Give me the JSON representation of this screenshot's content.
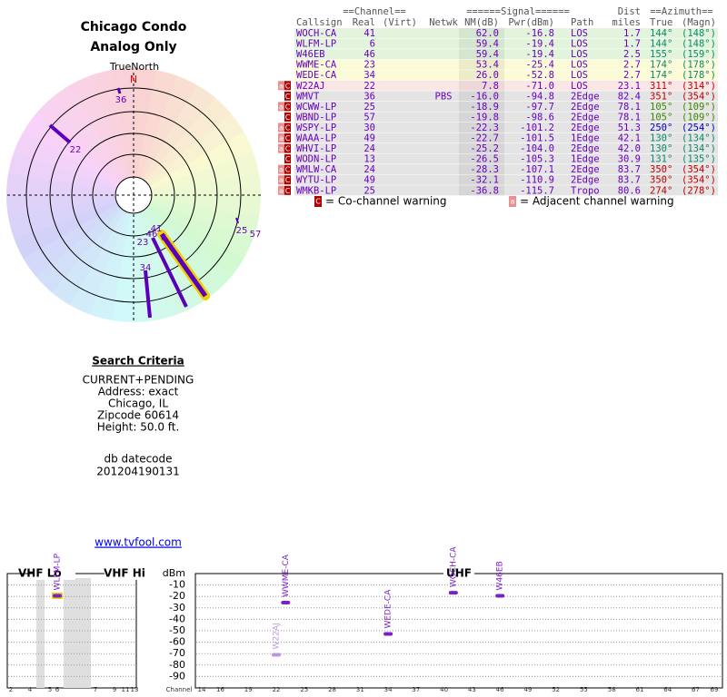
{
  "header": {
    "title": "Chicago Condo",
    "subtitle": "Analog Only"
  },
  "polar": {
    "north_label": "TrueNorth",
    "north_mark": "N",
    "labels": [
      "36",
      "22",
      "41",
      "46",
      "6",
      "23",
      "34",
      "25",
      "57"
    ]
  },
  "table": {
    "group_headers": [
      "==Channel==",
      "======Signal======",
      "Dist",
      "==Azimuth=="
    ],
    "columns": [
      "Callsign",
      "Real",
      "(Virt)",
      "Netwk",
      "NM(dB)",
      "Pwr(dBm)",
      "Path",
      "miles",
      "True",
      "(Magn)"
    ],
    "rows": [
      {
        "cells": [
          "WOCH-CA",
          "41",
          null,
          null,
          "62.0",
          "-16.8",
          "LOS",
          "1.7",
          "144°",
          "(148°)"
        ],
        "flags": [],
        "bg": "#e2f5dc",
        "az_color": "#0a8a6a"
      },
      {
        "cells": [
          "WLFM-LP",
          "6",
          null,
          null,
          "59.4",
          "-19.4",
          "LOS",
          "1.7",
          "144°",
          "(148°)"
        ],
        "flags": [],
        "bg": "#e2f5dc",
        "az_color": "#0a8a6a"
      },
      {
        "cells": [
          "W46EB",
          "46",
          null,
          null,
          "59.4",
          "-19.4",
          "LOS",
          "2.5",
          "155°",
          "(159°)"
        ],
        "flags": [],
        "bg": "#e2f5dc",
        "az_color": "#0a8a6a"
      },
      {
        "cells": [
          "WWME-CA",
          "23",
          null,
          null,
          "53.4",
          "-25.4",
          "LOS",
          "2.7",
          "174°",
          "(178°)"
        ],
        "flags": [],
        "bg": "#fbfbd8",
        "az_color": "#0a8a6a"
      },
      {
        "cells": [
          "WEDE-CA",
          "34",
          null,
          null,
          "26.0",
          "-52.8",
          "LOS",
          "2.7",
          "174°",
          "(178°)"
        ],
        "flags": [],
        "bg": "#fbfbd8",
        "az_color": "#0a8a6a"
      },
      {
        "cells": [
          "W22AJ",
          "22",
          null,
          null,
          "7.8",
          "-71.0",
          "LOS",
          "23.1",
          "311°",
          "(314°)"
        ],
        "flags": [
          "a",
          "C"
        ],
        "bg": "#fbe6e6",
        "az_color": "#c00000"
      },
      {
        "cells": [
          "WMVT",
          "36",
          null,
          "PBS",
          "-16.0",
          "-94.8",
          "2Edge",
          "82.4",
          "351°",
          "(354°)"
        ],
        "flags": [
          "C"
        ],
        "bg": "#e4e4e4",
        "az_color": "#c00000"
      },
      {
        "cells": [
          "WCWW-LP",
          "25",
          null,
          null,
          "-18.9",
          "-97.7",
          "2Edge",
          "78.1",
          "105°",
          "(109°)"
        ],
        "flags": [
          "a",
          "C"
        ],
        "bg": "#e4e4e4",
        "az_color": "#3a8a00"
      },
      {
        "cells": [
          "WBND-LP",
          "57",
          null,
          null,
          "-19.8",
          "-98.6",
          "2Edge",
          "78.1",
          "105°",
          "(109°)"
        ],
        "flags": [
          "C"
        ],
        "bg": "#e4e4e4",
        "az_color": "#3a8a00"
      },
      {
        "cells": [
          "WSPY-LP",
          "30",
          null,
          null,
          "-22.3",
          "-101.2",
          "2Edge",
          "51.3",
          "250°",
          "(254°)"
        ],
        "flags": [
          "a",
          "C"
        ],
        "bg": "#e4e4e4",
        "az_color": "#0000c0"
      },
      {
        "cells": [
          "WAAA-LP",
          "49",
          null,
          null,
          "-22.7",
          "-101.5",
          "1Edge",
          "42.1",
          "130°",
          "(134°)"
        ],
        "flags": [
          "a",
          "C"
        ],
        "bg": "#e4e4e4",
        "az_color": "#0a8a6a"
      },
      {
        "cells": [
          "WHVI-LP",
          "24",
          null,
          null,
          "-25.2",
          "-104.0",
          "2Edge",
          "42.0",
          "130°",
          "(134°)"
        ],
        "flags": [
          "a",
          "C"
        ],
        "bg": "#e4e4e4",
        "az_color": "#0a8a6a"
      },
      {
        "cells": [
          "WODN-LP",
          "13",
          null,
          null,
          "-26.5",
          "-105.3",
          "1Edge",
          "30.9",
          "131°",
          "(135°)"
        ],
        "flags": [
          "C"
        ],
        "bg": "#e4e4e4",
        "az_color": "#0a8a6a"
      },
      {
        "cells": [
          "WMLW-CA",
          "24",
          null,
          null,
          "-28.3",
          "-107.1",
          "2Edge",
          "83.7",
          "350°",
          "(354°)"
        ],
        "flags": [
          "a",
          "C"
        ],
        "bg": "#e4e4e4",
        "az_color": "#c00000"
      },
      {
        "cells": [
          "WYTU-LP",
          "49",
          null,
          null,
          "-32.1",
          "-110.9",
          "2Edge",
          "83.7",
          "350°",
          "(354°)"
        ],
        "flags": [
          "a",
          "C"
        ],
        "bg": "#e4e4e4",
        "az_color": "#c00000"
      },
      {
        "cells": [
          "WMKB-LP",
          "25",
          null,
          null,
          "-36.8",
          "-115.7",
          "Tropo",
          "80.6",
          "274°",
          "(278°)"
        ],
        "flags": [
          "a",
          "C"
        ],
        "bg": "#e4e4e4",
        "az_color": "#c00000"
      }
    ],
    "legend": [
      {
        "flag": "C",
        "text": "= Co-channel warning"
      },
      {
        "flag": "a",
        "text": "= Adjacent channel warning"
      }
    ]
  },
  "search": {
    "heading": "Search Criteria",
    "lines": [
      "CURRENT+PENDING",
      "Address: exact",
      "Chicago, IL",
      "Zipcode 60614",
      "Height: 50.0 ft."
    ]
  },
  "datecode": {
    "label": "db datecode",
    "value": "201204190131"
  },
  "link": "www.tvfool.com",
  "spectrum": {
    "bands": [
      "VHF Lo",
      "VHF Hi",
      "UHF"
    ],
    "unit": "dBm",
    "xlabel": "Channel",
    "ylim": [
      0,
      -100
    ],
    "yticks": [
      -10,
      -20,
      -30,
      -40,
      -50,
      -60,
      -70,
      -80,
      -90
    ],
    "vhf_ticks": [
      2,
      4,
      5,
      6,
      7,
      9,
      11,
      13
    ],
    "uhf_xlim": [
      14,
      69
    ],
    "uhf_ticks": [
      14,
      16,
      19,
      22,
      25,
      28,
      31,
      34,
      37,
      40,
      43,
      46,
      49,
      52,
      55,
      58,
      61,
      64,
      67,
      69
    ],
    "stations": [
      {
        "label": "WLFM-LP",
        "channel": 6,
        "dbm": -19.4,
        "color": "#7a20c8",
        "outline": "#f0d000"
      },
      {
        "label": "W22AJ",
        "channel": 22,
        "dbm": -71.0,
        "color": "#b898dc"
      },
      {
        "label": "WWME-CA",
        "channel": 23,
        "dbm": -25.4,
        "color": "#7a20c8"
      },
      {
        "label": "WEDE-CA",
        "channel": 34,
        "dbm": -52.8,
        "color": "#7a20c8"
      },
      {
        "label": "WOCH-CA",
        "channel": 41,
        "dbm": -16.8,
        "color": "#7a20c8"
      },
      {
        "label": "W46EB",
        "channel": 46,
        "dbm": -19.4,
        "color": "#7a20c8"
      }
    ]
  }
}
